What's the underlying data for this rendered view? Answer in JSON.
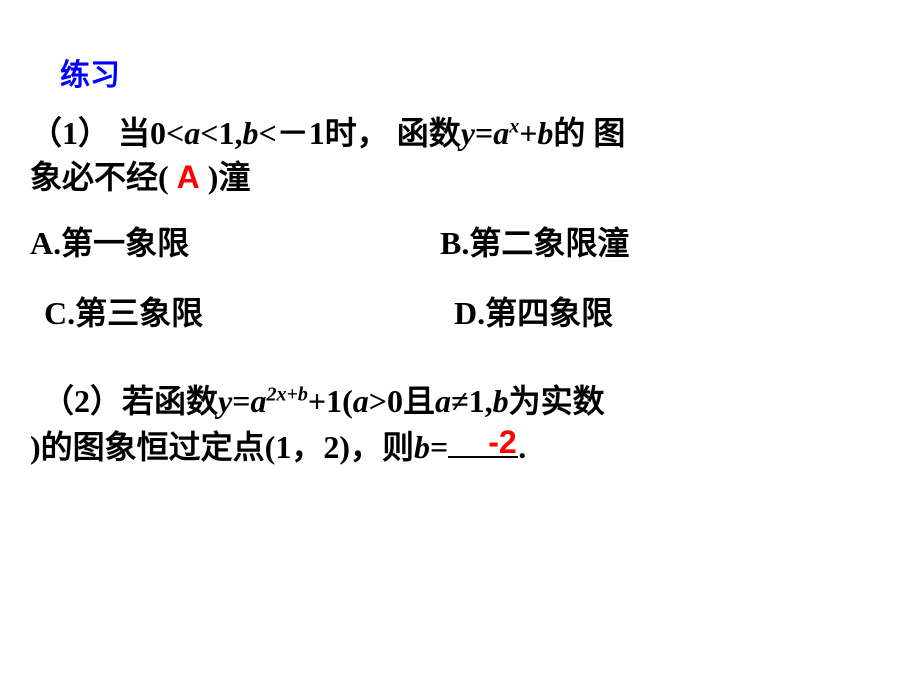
{
  "header": "练习",
  "q1": {
    "prefix": "（1）  当",
    "cond": "0<",
    "a": "a",
    "cond2": "<1,",
    "b": "b",
    "cond3": "<－1",
    "when": "时，  函数",
    "y": "y",
    "eq": "=",
    "ax": "a",
    "exp": "x",
    "plus": "+",
    "bb": "b",
    "tail": "的 图",
    "line2a": "象必不经(",
    "answer": "A",
    "line2b": ")潼"
  },
  "opts": {
    "a": "A.第一象限",
    "b": "B.第二象限潼",
    "c": "C.第三象限",
    "d": "D.第四象限"
  },
  "q2": {
    "prefix": "（2）若函数",
    "y": "y",
    "eq": "=",
    "a": "a",
    "exp": "2x+b",
    "plus": "+1(",
    "aa": "a",
    "cond": ">0且",
    "aaa": "a",
    "neq": "≠1,",
    "b": "b",
    "tail": "为实数",
    "line2a": ")的图象恒过定点(1，2)，则",
    "bb": "b",
    "eq2": "=",
    "answer": "-2",
    "period": "."
  },
  "colors": {
    "header": "#0000ff",
    "answer": "#ff0000",
    "text": "#000000",
    "bg": "#ffffff"
  },
  "fontsize": {
    "header": 30,
    "body": 32,
    "sup": 20
  }
}
